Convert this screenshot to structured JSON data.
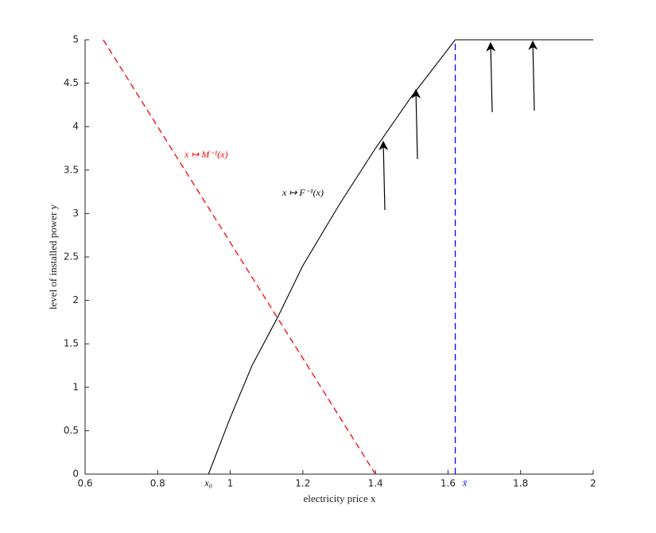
{
  "chart_data": {
    "type": "line",
    "xlabel": "electricity price x",
    "ylabel": "level of installed power y",
    "xlim": [
      0.6,
      2
    ],
    "ylim": [
      0,
      5
    ],
    "xticks": [
      0.6,
      0.8,
      1,
      1.2,
      1.4,
      1.6,
      1.8,
      2
    ],
    "yticks": [
      0,
      0.5,
      1,
      1.5,
      2,
      2.5,
      3,
      3.5,
      4,
      4.5,
      5
    ],
    "series": [
      {
        "color": "#ff0000",
        "dashed": true,
        "x": [
          0.65,
          1.4
        ],
        "values": [
          5,
          0
        ]
      },
      {
        "color": "#000000",
        "dashed": false,
        "x": [
          0.94,
          1.0,
          1.06,
          1.13,
          1.2,
          1.3,
          1.4,
          1.5,
          1.62,
          2
        ],
        "values": [
          0,
          0.65,
          1.25,
          1.8,
          2.4,
          3.1,
          3.75,
          4.35,
          5,
          5
        ]
      },
      {
        "color": "#0000ff",
        "dashed": true,
        "x": [
          1.62,
          1.62
        ],
        "values": [
          0,
          5
        ]
      }
    ],
    "xmarkers": [
      {
        "value": 0.94,
        "label": "x₀",
        "color": "#000000"
      },
      {
        "value": 1.62,
        "label": "x̄",
        "color": "#0000ff"
      }
    ],
    "annotations": [
      {
        "text": "x ↦ M⁻¹(x)",
        "color": "#ff0000"
      },
      {
        "text": "x ↦ F⁻¹(x)",
        "color": "#000000"
      }
    ]
  }
}
